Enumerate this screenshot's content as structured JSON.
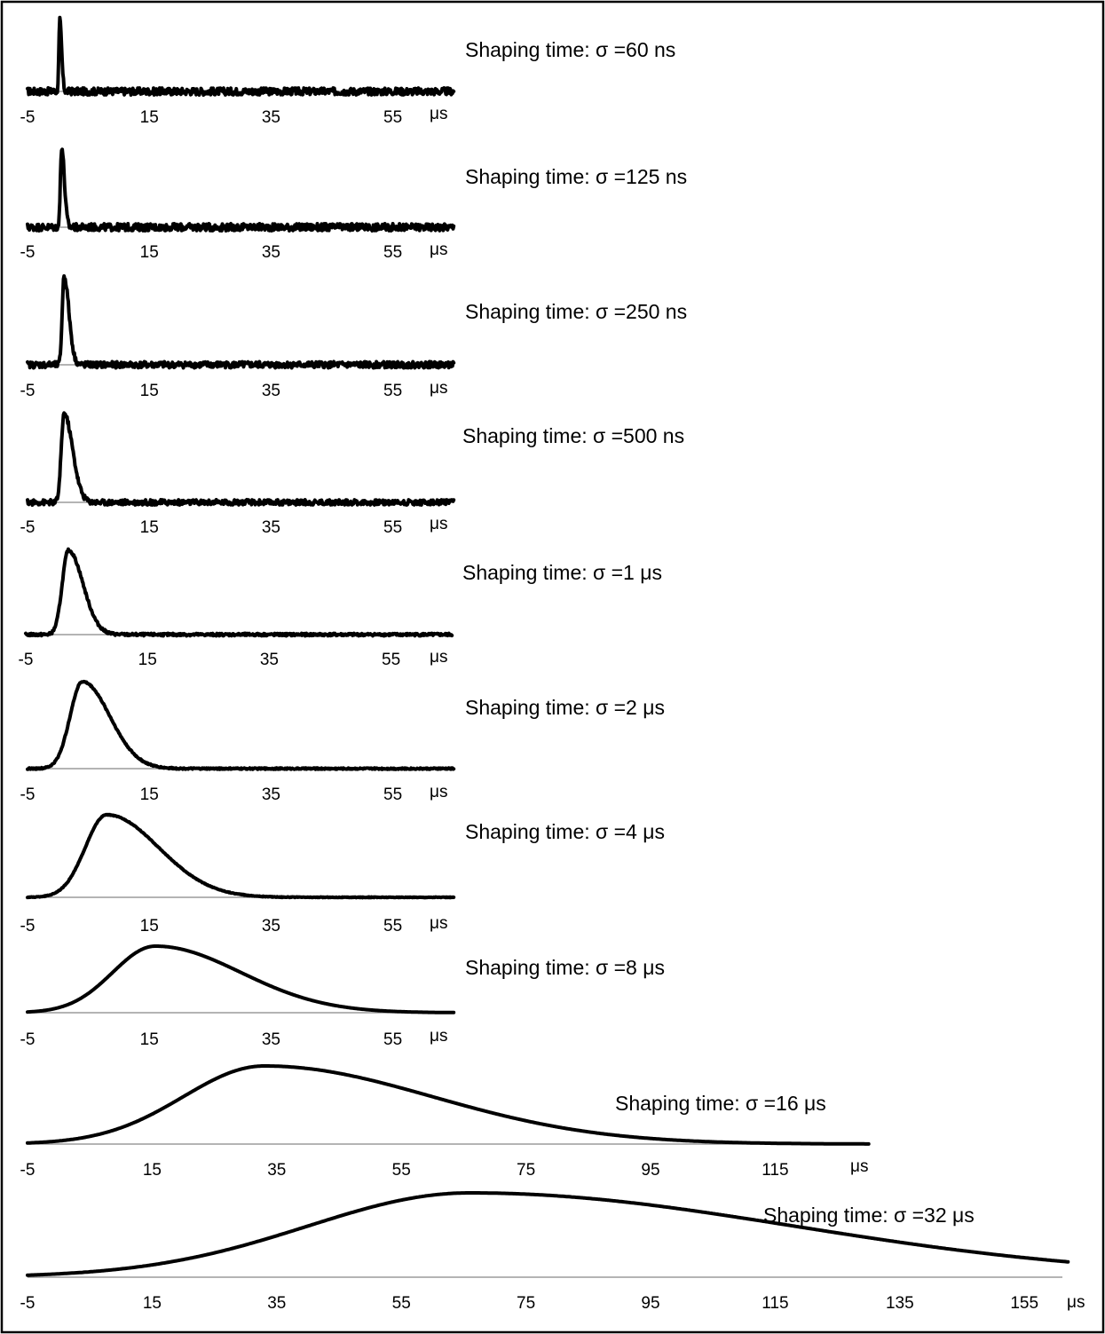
{
  "chart_data": [
    {
      "type": "line",
      "title": "Shaping time: σ =60 ns",
      "unit": "μs",
      "xticks": [
        "-5",
        "15",
        "35",
        "55"
      ],
      "xlim": [
        -5,
        65
      ],
      "series": [
        {
          "shape": "pulse",
          "peak_x": 0.3,
          "peak_y": 1.0,
          "rise": 0.15,
          "decay": 0.3,
          "noise": 0.05
        }
      ]
    },
    {
      "type": "line",
      "title": "Shaping time: σ =125 ns",
      "unit": "μs",
      "xticks": [
        "-5",
        "15",
        "35",
        "55"
      ],
      "xlim": [
        -5,
        65
      ],
      "series": [
        {
          "shape": "pulse",
          "peak_x": 0.6,
          "peak_y": 1.0,
          "rise": 0.2,
          "decay": 0.45,
          "noise": 0.045
        }
      ]
    },
    {
      "type": "line",
      "title": "Shaping time: σ =250 ns",
      "unit": "μs",
      "xticks": [
        "-5",
        "15",
        "35",
        "55"
      ],
      "xlim": [
        -5,
        65
      ],
      "series": [
        {
          "shape": "pulse",
          "peak_x": 1.0,
          "peak_y": 1.0,
          "rise": 0.3,
          "decay": 0.8,
          "noise": 0.035
        }
      ]
    },
    {
      "type": "line",
      "title": "Shaping time: σ =500 ns",
      "unit": "μs",
      "xticks": [
        "-5",
        "15",
        "35",
        "55"
      ],
      "xlim": [
        -5,
        65
      ],
      "series": [
        {
          "shape": "pulse",
          "peak_x": 1.0,
          "peak_y": 1.0,
          "rise": 0.45,
          "decay": 1.4,
          "noise": 0.03
        }
      ]
    },
    {
      "type": "line",
      "title": "Shaping time: σ =1 μs",
      "unit": "μs",
      "xticks": [
        "-5",
        "15",
        "35",
        "55"
      ],
      "xlim": [
        -5,
        65
      ],
      "series": [
        {
          "shape": "pulse",
          "peak_x": 2.0,
          "peak_y": 1.0,
          "rise": 1.0,
          "decay": 2.4,
          "noise": 0.015
        }
      ]
    },
    {
      "type": "line",
      "title": "Shaping time: σ =2 μs",
      "unit": "μs",
      "xticks": [
        "-5",
        "15",
        "35",
        "55"
      ],
      "xlim": [
        -5,
        65
      ],
      "series": [
        {
          "shape": "pulse",
          "peak_x": 4.0,
          "peak_y": 1.0,
          "rise": 2.0,
          "decay": 4.5,
          "noise": 0.008
        }
      ]
    },
    {
      "type": "line",
      "title": "Shaping time: σ =4 μs",
      "unit": "μs",
      "xticks": [
        "-5",
        "15",
        "35",
        "55"
      ],
      "xlim": [
        -5,
        65
      ],
      "series": [
        {
          "shape": "pulse",
          "peak_x": 8.0,
          "peak_y": 1.0,
          "rise": 3.5,
          "decay": 8.5,
          "noise": 0.004
        }
      ]
    },
    {
      "type": "line",
      "title": "Shaping time: σ =8 μs",
      "unit": "μs",
      "xticks": [
        "-5",
        "15",
        "35",
        "55"
      ],
      "xlim": [
        -5,
        65
      ],
      "series": [
        {
          "shape": "pulse",
          "peak_x": 16.0,
          "peak_y": 1.0,
          "rise": 7.0,
          "decay": 14.0,
          "noise": 0
        }
      ]
    },
    {
      "type": "line",
      "title": "Shaping time: σ =16 μs",
      "unit": "μs",
      "xticks": [
        "-5",
        "15",
        "35",
        "55",
        "75",
        "95",
        "115"
      ],
      "xlim": [
        -5,
        130
      ],
      "series": [
        {
          "shape": "pulse",
          "peak_x": 33.0,
          "peak_y": 1.0,
          "rise": 13.0,
          "decay": 27.0,
          "noise": 0
        }
      ]
    },
    {
      "type": "line",
      "title": "Shaping time: σ =32 μs",
      "unit": "μs",
      "xticks": [
        "-5",
        "15",
        "35",
        "55",
        "75",
        "95",
        "115",
        "135",
        "155"
      ],
      "xlim": [
        -5,
        162
      ],
      "series": [
        {
          "shape": "pulse",
          "peak_x": 66.0,
          "peak_y": 1.0,
          "rise": 26.0,
          "decay": 52.0,
          "noise": 0
        }
      ]
    }
  ]
}
